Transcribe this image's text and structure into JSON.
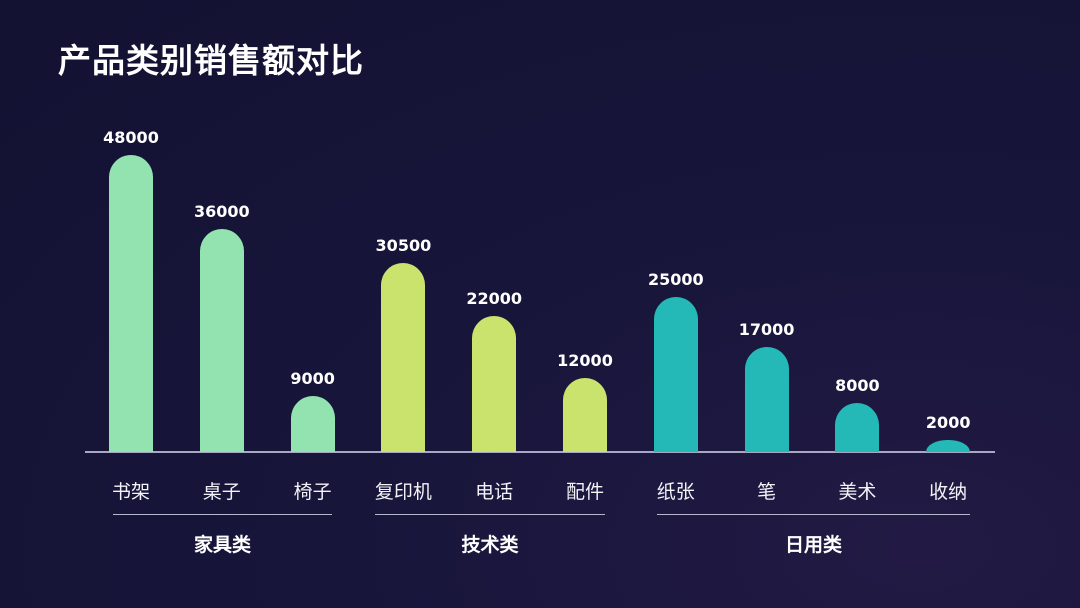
{
  "title": "产品类别销售额对比",
  "colors": {
    "background": "#17153a",
    "furniture": "#93e3b0",
    "technology": "#c9e36d",
    "daily": "#24b8b6",
    "axis": "#a9a8c4"
  },
  "chart_data": {
    "type": "bar",
    "title": "产品类别销售额对比",
    "xlabel": "",
    "ylabel": "",
    "ylim": [
      0,
      48000
    ],
    "grid": false,
    "legend": "none",
    "categories": [
      "书架",
      "桌子",
      "椅子",
      "复印机",
      "电话",
      "配件",
      "纸张",
      "笔",
      "美术",
      "收纳"
    ],
    "values": [
      48000,
      36000,
      9000,
      30500,
      22000,
      12000,
      25000,
      17000,
      8000,
      2000
    ],
    "groups": [
      {
        "name": "家具类",
        "categories": [
          "书架",
          "桌子",
          "椅子"
        ],
        "color": "#93e3b0"
      },
      {
        "name": "技术类",
        "categories": [
          "复印机",
          "电话",
          "配件"
        ],
        "color": "#c9e36d"
      },
      {
        "name": "日用类",
        "categories": [
          "纸张",
          "笔",
          "美术",
          "收纳"
        ],
        "color": "#24b8b6"
      }
    ],
    "data_labels": [
      "48000",
      "36000",
      "9000",
      "30500",
      "22000",
      "12000",
      "25000",
      "17000",
      "8000",
      "2000"
    ]
  },
  "bars": [
    {
      "label": "书架",
      "value": 48000,
      "display": "48000",
      "group": 0
    },
    {
      "label": "桌子",
      "value": 36000,
      "display": "36000",
      "group": 0
    },
    {
      "label": "椅子",
      "value": 9000,
      "display": "9000",
      "group": 0
    },
    {
      "label": "复印机",
      "value": 30500,
      "display": "30500",
      "group": 1
    },
    {
      "label": "电话",
      "value": 22000,
      "display": "22000",
      "group": 1
    },
    {
      "label": "配件",
      "value": 12000,
      "display": "12000",
      "group": 1
    },
    {
      "label": "纸张",
      "value": 25000,
      "display": "25000",
      "group": 2
    },
    {
      "label": "笔",
      "value": 17000,
      "display": "17000",
      "group": 2
    },
    {
      "label": "美术",
      "value": 8000,
      "display": "8000",
      "group": 2
    },
    {
      "label": "收纳",
      "value": 2000,
      "display": "2000",
      "group": 2
    }
  ],
  "groups": [
    {
      "label": "家具类"
    },
    {
      "label": "技术类"
    },
    {
      "label": "日用类"
    }
  ]
}
